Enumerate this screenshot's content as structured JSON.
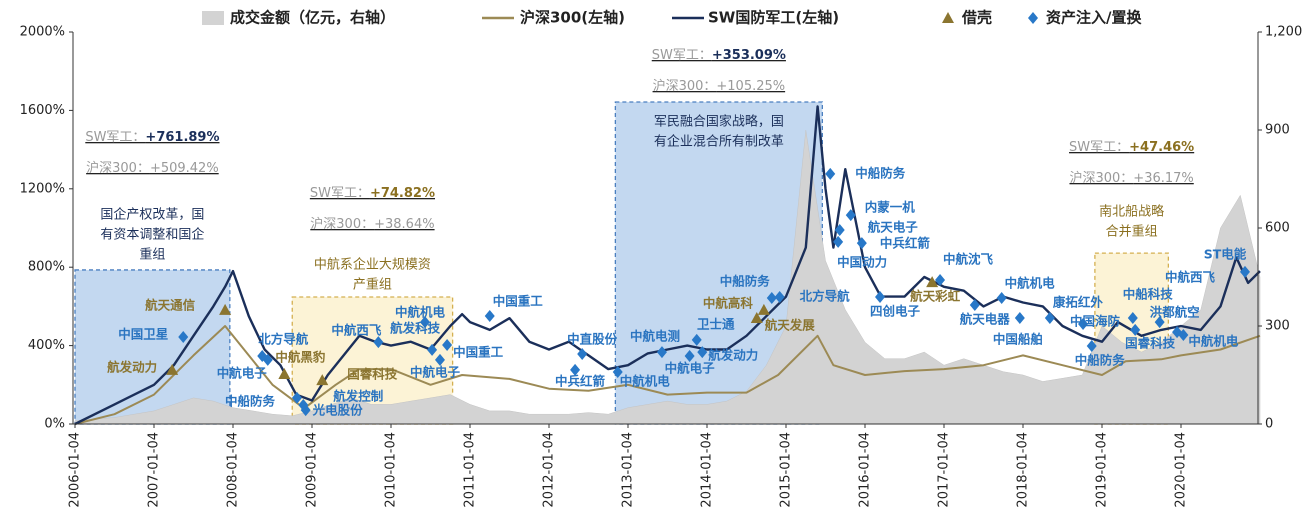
{
  "chart_data": {
    "type": "line",
    "xlim": [
      2006,
      2021
    ],
    "ylim": [
      0,
      2000
    ],
    "y2lim": [
      0,
      1200
    ],
    "xticks": [
      {
        "value": 2006,
        "label": "2006-01-04"
      },
      {
        "value": 2007,
        "label": "2007-01-04"
      },
      {
        "value": 2008,
        "label": "2008-01-04"
      },
      {
        "value": 2009,
        "label": "2009-01-04"
      },
      {
        "value": 2010,
        "label": "2010-01-04"
      },
      {
        "value": 2011,
        "label": "2011-01-04"
      },
      {
        "value": 2012,
        "label": "2012-01-04"
      },
      {
        "value": 2013,
        "label": "2013-01-04"
      },
      {
        "value": 2014,
        "label": "2014-01-04"
      },
      {
        "value": 2015,
        "label": "2015-01-04"
      },
      {
        "value": 2016,
        "label": "2016-01-04"
      },
      {
        "value": 2017,
        "label": "2017-01-04"
      },
      {
        "value": 2018,
        "label": "2018-01-04"
      },
      {
        "value": 2019,
        "label": "2019-01-04"
      },
      {
        "value": 2020,
        "label": "2020-01-04"
      }
    ],
    "yticks": [
      {
        "value": 0,
        "label": "0%"
      },
      {
        "value": 400,
        "label": "400%"
      },
      {
        "value": 800,
        "label": "800%"
      },
      {
        "value": 1200,
        "label": "1200%"
      },
      {
        "value": 1600,
        "label": "1600%"
      },
      {
        "value": 2000,
        "label": "2000%"
      }
    ],
    "y2ticks": [
      0,
      300,
      600,
      900,
      {
        "value": 1200,
        "label": "1,200"
      }
    ],
    "series": [
      {
        "name": "成交金额（亿元，右轴）",
        "color": "#d3d3d3",
        "style": "area",
        "axis": "y2",
        "x": [
          2006,
          2006.25,
          2006.5,
          2006.75,
          2007,
          2007.25,
          2007.5,
          2007.75,
          2008,
          2008.25,
          2008.5,
          2008.75,
          2009,
          2009.25,
          2009.5,
          2009.75,
          2010,
          2010.25,
          2010.5,
          2010.75,
          2011,
          2011.25,
          2011.5,
          2011.75,
          2012,
          2012.25,
          2012.5,
          2012.75,
          2013,
          2013.25,
          2013.5,
          2013.75,
          2014,
          2014.25,
          2014.5,
          2014.75,
          2015,
          2015.25,
          2015.5,
          2015.75,
          2016,
          2016.25,
          2016.5,
          2016.75,
          2017,
          2017.25,
          2017.5,
          2017.75,
          2018,
          2018.25,
          2018.5,
          2018.75,
          2019,
          2019.25,
          2019.5,
          2019.75,
          2020,
          2020.25,
          2020.5,
          2020.75,
          2021
        ],
        "values": [
          10,
          15,
          20,
          30,
          40,
          60,
          80,
          70,
          50,
          40,
          30,
          25,
          40,
          60,
          80,
          60,
          60,
          70,
          80,
          90,
          60,
          40,
          40,
          30,
          30,
          30,
          35,
          30,
          50,
          60,
          70,
          60,
          60,
          70,
          100,
          180,
          300,
          900,
          500,
          350,
          250,
          200,
          200,
          220,
          180,
          200,
          180,
          160,
          150,
          130,
          140,
          150,
          300,
          250,
          220,
          250,
          300,
          350,
          600,
          700,
          450
        ]
      },
      {
        "name": "沪深300(左轴)",
        "color": "#9c8a55",
        "style": "line",
        "x": [
          2006,
          2006.5,
          2007,
          2007.5,
          2007.9,
          2008.2,
          2008.5,
          2008.9,
          2009.3,
          2009.6,
          2010,
          2010.5,
          2010.9,
          2011.5,
          2012,
          2012.5,
          2013,
          2013.5,
          2014,
          2014.5,
          2014.9,
          2015.4,
          2015.6,
          2016,
          2016.5,
          2017,
          2017.5,
          2018,
          2018.5,
          2019,
          2019.3,
          2019.75,
          2020,
          2020.5,
          2021
        ],
        "values": [
          0,
          50,
          150,
          350,
          500,
          350,
          200,
          80,
          200,
          280,
          280,
          200,
          250,
          230,
          180,
          170,
          200,
          150,
          160,
          160,
          250,
          450,
          300,
          250,
          270,
          280,
          300,
          350,
          300,
          250,
          320,
          330,
          350,
          380,
          450
        ]
      },
      {
        "name": "SW国防军工(左轴)",
        "color": "#1b2f5a",
        "style": "line",
        "x": [
          2006,
          2006.5,
          2007,
          2007.25,
          2007.5,
          2007.75,
          2007.9,
          2008,
          2008.2,
          2008.4,
          2008.6,
          2008.8,
          2009,
          2009.2,
          2009.4,
          2009.6,
          2009.8,
          2010,
          2010.25,
          2010.5,
          2010.75,
          2010.9,
          2011,
          2011.25,
          2011.5,
          2011.75,
          2012,
          2012.25,
          2012.5,
          2012.75,
          2013,
          2013.25,
          2013.5,
          2013.75,
          2014,
          2014.25,
          2014.5,
          2014.75,
          2015,
          2015.25,
          2015.4,
          2015.5,
          2015.6,
          2015.75,
          2015.9,
          2016,
          2016.2,
          2016.5,
          2016.75,
          2017,
          2017.25,
          2017.5,
          2017.75,
          2018,
          2018.25,
          2018.5,
          2018.75,
          2019,
          2019.2,
          2019.5,
          2019.75,
          2020,
          2020.25,
          2020.5,
          2020.7,
          2020.85,
          2021
        ],
        "values": [
          0,
          100,
          200,
          300,
          450,
          600,
          700,
          780,
          550,
          380,
          300,
          150,
          120,
          250,
          350,
          450,
          420,
          400,
          420,
          380,
          500,
          560,
          520,
          480,
          540,
          420,
          380,
          420,
          350,
          280,
          300,
          360,
          380,
          400,
          380,
          380,
          450,
          550,
          650,
          900,
          1620,
          1200,
          900,
          1300,
          1000,
          800,
          650,
          650,
          750,
          700,
          680,
          600,
          650,
          620,
          600,
          500,
          450,
          420,
          520,
          450,
          480,
          500,
          480,
          600,
          850,
          720,
          780
        ]
      }
    ],
    "marker_types": [
      {
        "name": "借壳",
        "shape": "triangle",
        "color": "#8b7530"
      },
      {
        "name": "资产注入/置换",
        "shape": "diamond",
        "color": "#2878c8"
      }
    ],
    "annotations": [
      {
        "label": "航发动力",
        "kind": 0,
        "x": 2007.23,
        "y": 276
      },
      {
        "label": "中国卫星",
        "kind": 1,
        "x": 2007.37,
        "y": 444
      },
      {
        "label": "航天通信",
        "kind": 0,
        "x": 2007.9,
        "y": 582
      },
      {
        "label": "中航电子",
        "kind": 1,
        "x": 2008.44,
        "y": 327
      },
      {
        "label": "北方导航",
        "kind": 1,
        "x": 2008.37,
        "y": 347
      },
      {
        "label": "中航黑豹",
        "kind": 0,
        "x": 2008.65,
        "y": 255
      },
      {
        "label": "中船防务",
        "kind": 1,
        "x": 2008.81,
        "y": 133
      },
      {
        "label": "航发控制",
        "kind": 1,
        "x": 2008.89,
        "y": 97
      },
      {
        "label": "光电股份",
        "kind": 1,
        "x": 2008.92,
        "y": 71
      },
      {
        "label": "国睿科技",
        "kind": 0,
        "x": 2009.13,
        "y": 224
      },
      {
        "label": "中航西飞",
        "kind": 1,
        "x": 2009.84,
        "y": 418
      },
      {
        "label": "中航机电",
        "kind": 1,
        "x": 2010.43,
        "y": 520
      },
      {
        "label": "航发科技",
        "kind": 1,
        "x": 2010.52,
        "y": 378
      },
      {
        "label": "中航电子",
        "kind": 1,
        "x": 2010.62,
        "y": 327
      },
      {
        "label": "中国重工",
        "kind": 1,
        "x": 2010.71,
        "y": 403
      },
      {
        "label": "中国重工",
        "kind": 1,
        "x": 2011.25,
        "y": 551
      },
      {
        "label": "中直股份",
        "kind": 1,
        "x": 2012.42,
        "y": 357
      },
      {
        "label": "中兵红箭",
        "kind": 1,
        "x": 2012.33,
        "y": 276
      },
      {
        "label": "中航机电",
        "kind": 1,
        "x": 2012.87,
        "y": 265
      },
      {
        "label": "中航电测",
        "kind": 1,
        "x": 2013.43,
        "y": 367
      },
      {
        "label": "中航电子",
        "kind": 1,
        "x": 2013.78,
        "y": 347
      },
      {
        "label": "航发动力",
        "kind": 1,
        "x": 2013.94,
        "y": 367
      },
      {
        "label": "卫士通",
        "kind": 1,
        "x": 2013.87,
        "y": 429
      },
      {
        "label": "中航高科",
        "kind": 0,
        "x": 2014.72,
        "y": 582
      },
      {
        "label": "航天发展",
        "kind": 0,
        "x": 2014.63,
        "y": 541
      },
      {
        "label": "中船防务",
        "kind": 1,
        "x": 2014.82,
        "y": 643
      },
      {
        "label": "北方导航",
        "kind": 1,
        "x": 2014.92,
        "y": 648
      },
      {
        "label": "中船防务",
        "kind": 1,
        "x": 2015.56,
        "y": 1276
      },
      {
        "label": "内蒙一机",
        "kind": 1,
        "x": 2015.82,
        "y": 1066
      },
      {
        "label": "航天电子",
        "kind": 1,
        "x": 2015.68,
        "y": 990
      },
      {
        "label": "中兵红箭",
        "kind": 1,
        "x": 2015.96,
        "y": 923
      },
      {
        "label": "中国动力",
        "kind": 1,
        "x": 2015.66,
        "y": 929
      },
      {
        "label": "航天彩虹",
        "kind": 0,
        "x": 2016.85,
        "y": 724
      },
      {
        "label": "四创电子",
        "kind": 1,
        "x": 2016.19,
        "y": 648
      },
      {
        "label": "中航沈飞",
        "kind": 1,
        "x": 2016.95,
        "y": 735
      },
      {
        "label": "航天电器",
        "kind": 1,
        "x": 2017.39,
        "y": 607
      },
      {
        "label": "中航机电",
        "kind": 1,
        "x": 2017.73,
        "y": 643
      },
      {
        "label": "中国船舶",
        "kind": 1,
        "x": 2017.96,
        "y": 541
      },
      {
        "label": "康拓红外",
        "kind": 1,
        "x": 2018.34,
        "y": 541
      },
      {
        "label": "中国海防",
        "kind": 1,
        "x": 2018.76,
        "y": 510
      },
      {
        "label": "中船防务",
        "kind": 1,
        "x": 2018.87,
        "y": 398
      },
      {
        "label": "中船科技",
        "kind": 1,
        "x": 2019.39,
        "y": 541
      },
      {
        "label": "国睿科技",
        "kind": 1,
        "x": 2019.42,
        "y": 480
      },
      {
        "label": "洪都航空",
        "kind": 1,
        "x": 2019.73,
        "y": 520
      },
      {
        "label": "中航西飞",
        "kind": 1,
        "x": 2019.95,
        "y": 469
      },
      {
        "label": "中航机电",
        "kind": 1,
        "x": 2020.03,
        "y": 454
      },
      {
        "label": "ST电能",
        "kind": 1,
        "x": 2020.81,
        "y": 776
      }
    ],
    "periods": [
      {
        "x0": 2006,
        "x1": 2007.96,
        "top": 786,
        "fill": "#a9c8ea",
        "edge": "#4a7fc0",
        "text_color": "#1b2f5a",
        "lines": [
          "国企产权改革，国",
          "有资本调整和国企",
          "重组"
        ],
        "gain_color": "#1b2f5a",
        "sw_label": "SW军工：",
        "sw_gain": "+761.89%",
        "hs_label": "沪深300：",
        "hs_gain": "+509.42%"
      },
      {
        "x0": 2008.75,
        "x1": 2010.78,
        "top": 648,
        "fill": "#fbeec4",
        "edge": "#d4b050",
        "text_color": "#8b7020",
        "lines": [
          "中航系企业大规模资",
          "产重组"
        ],
        "gain_color": "#8b7020",
        "sw_label": "SW军工：",
        "sw_gain": "+74.82%",
        "hs_label": "沪深300：",
        "hs_gain": "+38.64%"
      },
      {
        "x0": 2012.84,
        "x1": 2015.46,
        "top": 1643,
        "fill": "#a9c8ea",
        "edge": "#4a7fc0",
        "text_color": "#1b2f5a",
        "lines": [
          "军民融合国家战略，国",
          "有企业混合所有制改革"
        ],
        "gain_color": "#1b2f5a",
        "sw_label": "SW军工：",
        "sw_gain": "+353.09%",
        "hs_label": "沪深300：",
        "hs_gain": "+105.25%"
      },
      {
        "x0": 2018.91,
        "x1": 2019.84,
        "top": 872,
        "fill": "#fbeec4",
        "edge": "#d4b050",
        "text_color": "#8b7020",
        "lines": [
          "南北船战略",
          "合并重组"
        ],
        "gain_color": "#8b7020",
        "sw_label": "SW军工：",
        "sw_gain": "+47.46%",
        "hs_label": "沪深300：",
        "hs_gain": "+36.17%"
      }
    ]
  }
}
